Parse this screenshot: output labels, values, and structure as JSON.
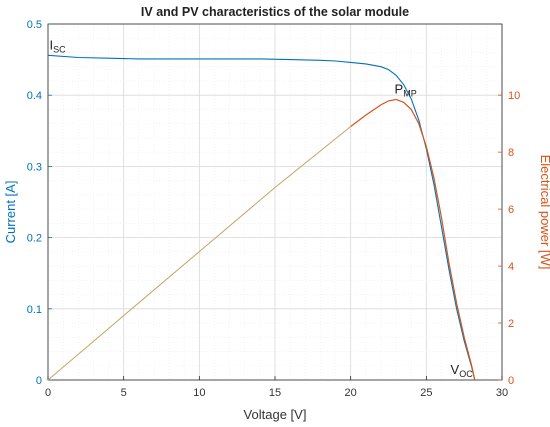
{
  "chart_data": {
    "type": "line",
    "title": "IV and PV characteristics of the solar module",
    "xlabel": "Voltage [V]",
    "ylabel_left": "Current [A]",
    "ylabel_right": "Electrical power [W]",
    "xlim": [
      0,
      30
    ],
    "ylim_left": [
      0,
      0.5
    ],
    "ylim_right": [
      0,
      12.5
    ],
    "x_ticks": [
      0,
      5,
      10,
      15,
      20,
      25,
      30
    ],
    "y_ticks_left": [
      0,
      0.1,
      0.2,
      0.3,
      0.4,
      0.5
    ],
    "y_ticks_right": [
      0,
      2,
      4,
      6,
      8,
      10
    ],
    "grid": true,
    "colors": {
      "current": "#0072BD",
      "power": "#D95319",
      "power_linear": "#C8A166"
    },
    "series": [
      {
        "axis": "left",
        "x": [
          0,
          2,
          4,
          6,
          8,
          10,
          12,
          14,
          16,
          18,
          19,
          20,
          21,
          22,
          22.5,
          23,
          23.5,
          24,
          24.5,
          25,
          25.5,
          26,
          26.5,
          27,
          27.5,
          28,
          28.2
        ],
        "y": [
          0.456,
          0.453,
          0.452,
          0.451,
          0.451,
          0.451,
          0.451,
          0.451,
          0.45,
          0.449,
          0.448,
          0.446,
          0.444,
          0.44,
          0.436,
          0.428,
          0.415,
          0.395,
          0.365,
          0.325,
          0.275,
          0.215,
          0.155,
          0.1,
          0.055,
          0.018,
          0.0
        ]
      },
      {
        "axis": "right",
        "x": [
          0,
          5,
          10,
          15,
          20,
          21,
          22,
          22.5,
          23,
          23.5,
          24,
          24.5,
          25,
          25.5,
          26,
          26.5,
          27,
          27.5,
          28,
          28.2
        ],
        "y": [
          0,
          2.26,
          4.51,
          6.76,
          8.9,
          9.3,
          9.66,
          9.8,
          9.85,
          9.75,
          9.5,
          9.0,
          8.2,
          7.1,
          5.7,
          4.1,
          2.7,
          1.5,
          0.5,
          0.0
        ]
      }
    ],
    "annotations": [
      {
        "main": "I",
        "sub": "SC",
        "x": 0.1,
        "y_left": 0.456
      },
      {
        "main": "P",
        "sub": "MP",
        "x": 22.9,
        "y_left": 0.394
      },
      {
        "main": "V",
        "sub": "OC",
        "x": 26.6,
        "y_left": 0.0
      }
    ]
  }
}
